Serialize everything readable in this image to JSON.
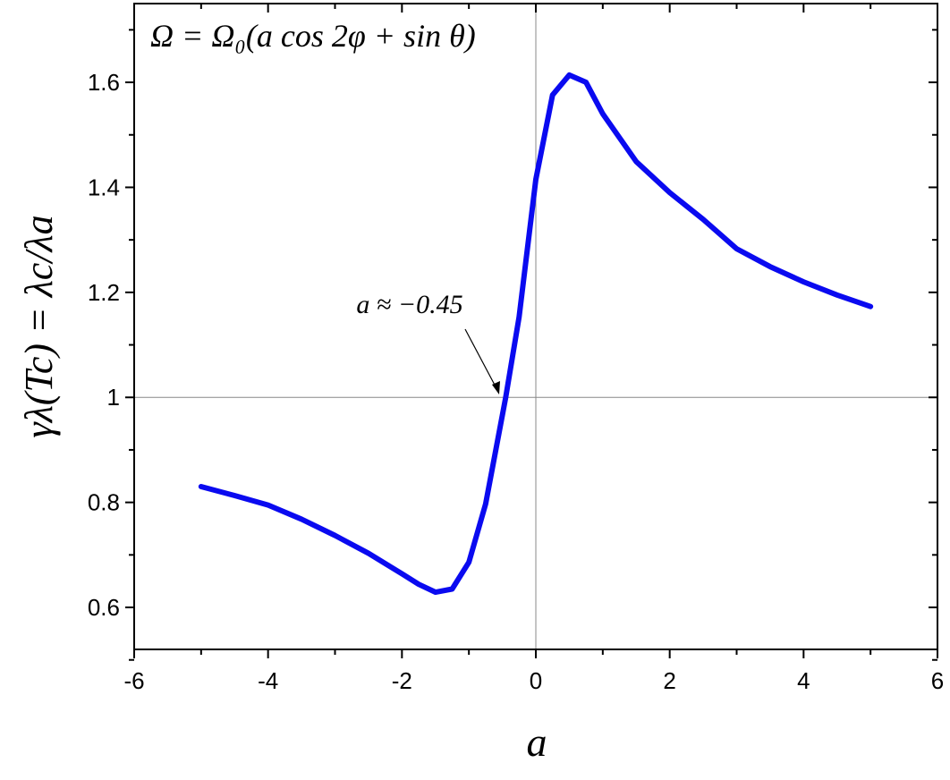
{
  "chart_data": {
    "type": "line",
    "title": "Ω = Ω₀(a cos 2φ + sin θ)",
    "x_label": "a",
    "y_label": "γλ(Tc) = λc/λa",
    "annotation": "a ≈ −0.45",
    "series": [
      {
        "name": "γλ(Tc)",
        "color": "#0a0af0",
        "x": [
          -5,
          -4.5,
          -4,
          -3.5,
          -3,
          -2.5,
          -2,
          -1.75,
          -1.5,
          -1.25,
          -1,
          -0.75,
          -0.5,
          -0.45,
          -0.25,
          0,
          0.25,
          0.5,
          0.75,
          1,
          1.5,
          2,
          2.5,
          3,
          3.5,
          4,
          4.5,
          5
        ],
        "values": [
          0.83,
          0.813,
          0.795,
          0.768,
          0.737,
          0.703,
          0.664,
          0.644,
          0.629,
          0.635,
          0.686,
          0.797,
          0.966,
          1.0,
          1.153,
          1.415,
          1.576,
          1.614,
          1.6,
          1.54,
          1.449,
          1.39,
          1.339,
          1.283,
          1.249,
          1.22,
          1.195,
          1.173
        ]
      }
    ],
    "xlim": [
      -6,
      6
    ],
    "xticks": [
      -6,
      -4,
      -2,
      0,
      2,
      4,
      6
    ],
    "ylim": [
      0.52,
      1.75
    ],
    "yticks": [
      0.6,
      0.8,
      1,
      1.2,
      1.4,
      1.6
    ],
    "hlines": [
      1
    ],
    "vlines": [
      0
    ],
    "grid": false
  }
}
